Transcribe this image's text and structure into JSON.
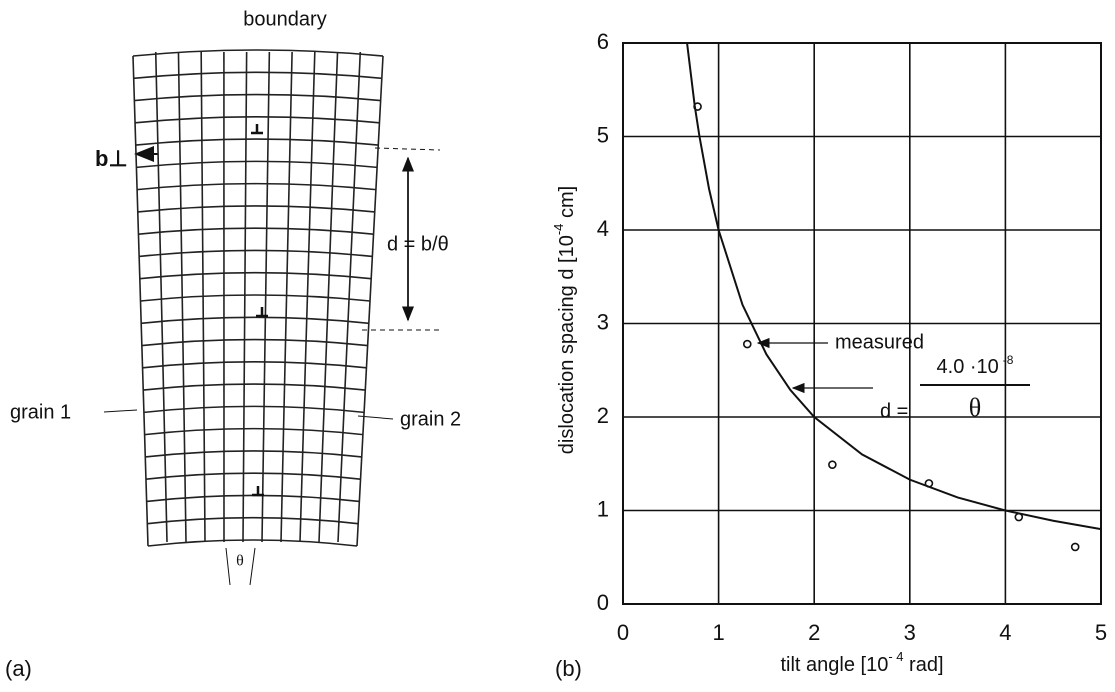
{
  "diagram": {
    "title": "boundary",
    "burgers": "b⊥",
    "spacing": "d = b/θ",
    "grain_left": "grain 1",
    "grain_right": "grain 2",
    "angle": "θ",
    "panel": "(a)"
  },
  "chart_data": {
    "type": "scatter",
    "panel": "(b)",
    "x_label": {
      "text": "tilt angle [10",
      "sup": "- 4",
      "tail": " rad]"
    },
    "y_label": {
      "text": "dislocation spacing d  [10",
      "sup": "-4",
      "tail": " cm]"
    },
    "formula_numerator": "4.0 ·10",
    "formula_exponent": "-8",
    "formula_denominator": "θ",
    "xlim": [
      0,
      5
    ],
    "xticks": [
      0,
      1,
      2,
      3,
      4,
      5
    ],
    "ylim": [
      0,
      6
    ],
    "yticks": [
      0,
      1,
      2,
      3,
      4,
      5,
      6
    ],
    "grid": true,
    "series": [
      {
        "name": "measured",
        "type": "scatter",
        "color": "#111111",
        "x": [
          0.78,
          1.3,
          2.19,
          3.2,
          4.14,
          4.73
        ],
        "values": [
          5.32,
          2.78,
          1.49,
          1.29,
          0.93,
          0.61
        ]
      },
      {
        "name": "d =",
        "type": "line",
        "color": "#111111",
        "x": [
          0.67,
          0.75,
          0.8,
          0.9,
          1,
          1.25,
          1.5,
          1.75,
          2,
          2.5,
          3,
          3.5,
          4,
          4.5,
          5
        ],
        "values": [
          6,
          5.33,
          5,
          4.44,
          4,
          3.2,
          2.67,
          2.29,
          2,
          1.6,
          1.33,
          1.14,
          1,
          0.89,
          0.8
        ]
      }
    ]
  }
}
